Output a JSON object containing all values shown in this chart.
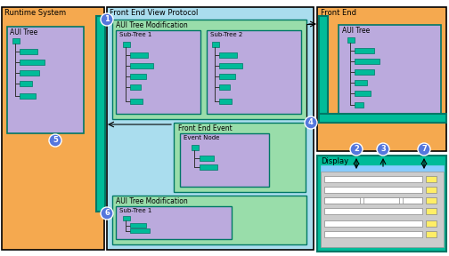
{
  "bg_color": "#ffffff",
  "orange": "#f5a94f",
  "light_blue": "#aaddee",
  "teal": "#00bb99",
  "light_purple": "#bbaadd",
  "green_box": "#99ddaa",
  "dark_teal": "#007766",
  "circle_blue": "#5577dd",
  "runtime_label": "Runtime System",
  "protocol_label": "Front End View Protocol",
  "frontend_label": "Front End",
  "aui_tree_label": "AUI Tree",
  "aui_mod_label": "AUI Tree Modification",
  "subtree1_label": "Sub-Tree 1",
  "subtree2_label": "Sub-Tree 2",
  "frontend_event_label": "Front End Event",
  "event_node_label": "Event Node",
  "display_label": "Display"
}
